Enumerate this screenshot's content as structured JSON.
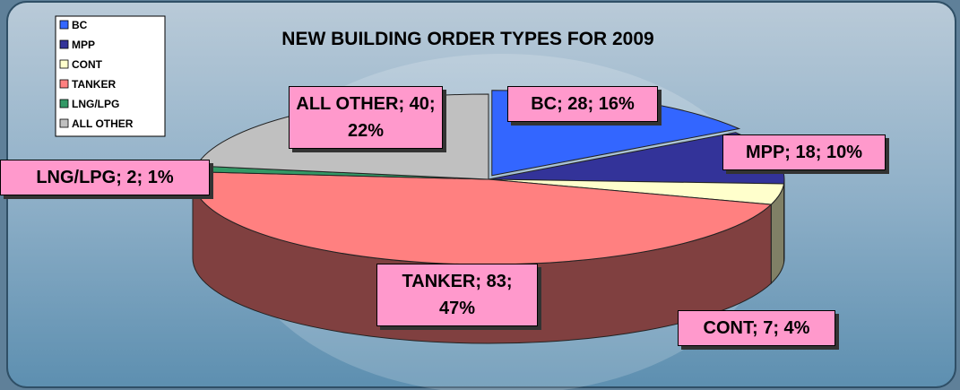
{
  "chart_data": {
    "type": "pie3d",
    "title": "NEW BUILDING ORDER TYPES FOR 2009",
    "categories": [
      "BC",
      "MPP",
      "CONT",
      "TANKER",
      "LNG/LPG",
      "ALL OTHER"
    ],
    "values": [
      28,
      18,
      7,
      83,
      2,
      40
    ],
    "value_labels": [
      "BC; 28; 16%",
      "MPP; 18; 10%",
      "CONT; 7; 4%",
      "TANKER; 83; 47%",
      "LNG/LPG; 2; 1%",
      "ALL OTHER; 40; 22%"
    ],
    "colors": [
      "#3366ff",
      "#333399",
      "#ffffcc",
      "#ff8080",
      "#339966",
      "#c0c0c0"
    ],
    "legend": "top-left"
  }
}
